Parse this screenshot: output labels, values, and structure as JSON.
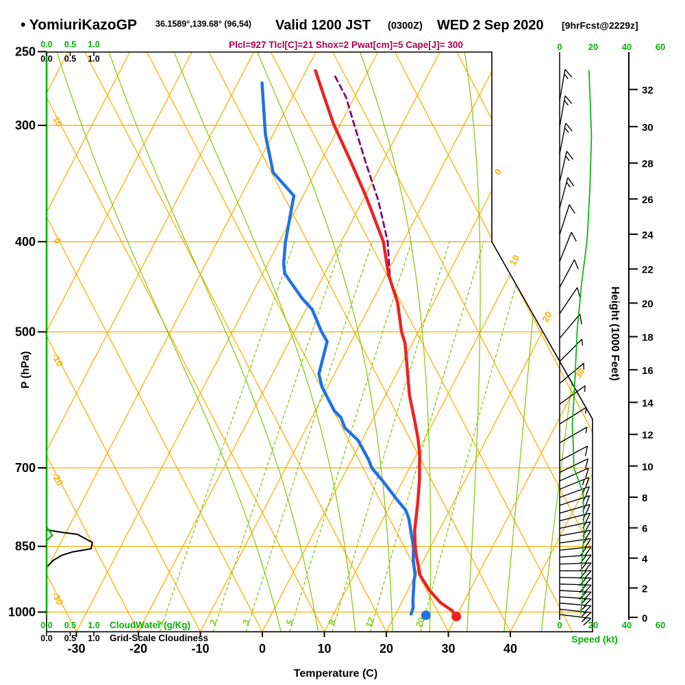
{
  "title": {
    "station": "• YomiuriKazoGP",
    "coords": "36.1589°,139.68° (96,54)",
    "valid": "Valid 1200 JST",
    "zulu": "(0300Z)",
    "date": "WED 2 Sep 2020",
    "fcst": "[9hrFcst@2229z]"
  },
  "params_line": "Plcl=927 Tlcl[C]=21 Shox=2 Pwat[cm]=5 Cape[J]= 300",
  "labels": {
    "pressure_axis": "P (hPa)",
    "temp_axis": "Temperature (C)",
    "height_axis": "Height (1000 Feet)",
    "speed_axis": "Speed (kt)",
    "cloud_water": "CloudWater (g/Kg)",
    "cloudiness": "Grid-Scale Cloudiness"
  },
  "colors": {
    "orange": "#FFAE00",
    "grid_green": "#84CC10",
    "ui_green": "#00B400",
    "red": "#EE2222",
    "blue": "#1E72E6",
    "purple": "#800080",
    "maroon": "#AA0055",
    "black": "#000000"
  },
  "chart_data": {
    "type": "line",
    "projection": "skew-t-log-p",
    "title": "YomiuriKazoGP sounding valid 1200 JST (0300Z) WED 2 Sep 2020",
    "xlabel": "Temperature (C)",
    "ylabel": "P (hPa)",
    "pressure_range_hPa": [
      1050,
      250
    ],
    "pressure_ticks_hPa": [
      250,
      300,
      400,
      500,
      700,
      850,
      1000
    ],
    "isobar_lines_hPa": [
      300,
      400,
      500,
      700,
      850,
      1000
    ],
    "temp_ticks_C": [
      -30,
      -20,
      -10,
      0,
      10,
      20,
      30,
      40
    ],
    "isotherm_lines_C": {
      "start": -100,
      "end": 40,
      "step": 10
    },
    "isotherm_edge_labels_C": [
      0,
      10,
      20,
      30
    ],
    "dry_adiabat_lines_C": {
      "start": -30,
      "end": 90,
      "step": 10
    },
    "dry_adiabat_edge_labels_C": [
      10,
      0,
      -10,
      -20,
      -30
    ],
    "moist_adiabat_starts_C_at_1050hPa": [
      3,
      9,
      15,
      21,
      27,
      33,
      39,
      45
    ],
    "mixing_ratio_lines_gkg": [
      1,
      2,
      3,
      5,
      8,
      12,
      20
    ],
    "height_ticks_kft": [
      0,
      2,
      4,
      6,
      8,
      10,
      12,
      14,
      16,
      18,
      20,
      22,
      24,
      26,
      28,
      30,
      32
    ],
    "speed_ticks_kt": [
      0,
      20,
      40,
      60
    ],
    "cloud_scale_ticks": [
      "0.0",
      "0.5",
      "1.0"
    ],
    "series": {
      "temperature_C": [
        [
          1011,
          29.9
        ],
        [
          997,
          28.9
        ],
        [
          977,
          26.3
        ],
        [
          949,
          23.6
        ],
        [
          913,
          20.7
        ],
        [
          863,
          18.1
        ],
        [
          850,
          17.5
        ],
        [
          818,
          16.1
        ],
        [
          762,
          14.2
        ],
        [
          721,
          12.6
        ],
        [
          700,
          11.6
        ],
        [
          677,
          10.5
        ],
        [
          651,
          8.9
        ],
        [
          622,
          6.8
        ],
        [
          585,
          3.9
        ],
        [
          514,
          -1.2
        ],
        [
          500,
          -2.7
        ],
        [
          465,
          -5.8
        ],
        [
          434,
          -9.6
        ],
        [
          400,
          -13.2
        ],
        [
          357,
          -19.9
        ],
        [
          328,
          -25.2
        ],
        [
          299,
          -31.1
        ],
        [
          279,
          -35.0
        ],
        [
          262,
          -38.5
        ]
      ],
      "dewpoint_C": [
        [
          1005,
          22.5
        ],
        [
          989,
          22.3
        ],
        [
          973,
          21.7
        ],
        [
          923,
          20.1
        ],
        [
          913,
          19.9
        ],
        [
          881,
          18.4
        ],
        [
          850,
          17.2
        ],
        [
          793,
          14.1
        ],
        [
          777,
          12.9
        ],
        [
          756,
          10.5
        ],
        [
          725,
          7.0
        ],
        [
          700,
          3.9
        ],
        [
          687,
          2.8
        ],
        [
          654,
          -0.6
        ],
        [
          634,
          -3.8
        ],
        [
          618,
          -5.3
        ],
        [
          608,
          -6.9
        ],
        [
          587,
          -9.3
        ],
        [
          573,
          -10.9
        ],
        [
          555,
          -12.5
        ],
        [
          512,
          -13.9
        ],
        [
          500,
          -15.6
        ],
        [
          473,
          -19.0
        ],
        [
          460,
          -21.6
        ],
        [
          433,
          -26.4
        ],
        [
          423,
          -27.4
        ],
        [
          400,
          -29.0
        ],
        [
          357,
          -31.5
        ],
        [
          337,
          -36.8
        ],
        [
          307,
          -41.2
        ],
        [
          270,
          -46.1
        ]
      ],
      "parcel_C": [
        [
          434,
          -9.4
        ],
        [
          400,
          -12.5
        ],
        [
          361,
          -17.5
        ],
        [
          330,
          -22.5
        ],
        [
          299,
          -27.8
        ],
        [
          280,
          -31.3
        ],
        [
          264,
          -35.3
        ]
      ],
      "surface_temperature_point": [
        1011,
        30
      ],
      "surface_dewpoint_point": [
        1008,
        25
      ],
      "wind_speed_kt": [
        [
          262,
          17.5
        ],
        [
          308,
          19
        ],
        [
          351,
          18
        ],
        [
          396,
          16.5
        ],
        [
          445,
          13
        ],
        [
          497,
          10.5
        ],
        [
          569,
          9
        ],
        [
          630,
          7.5
        ],
        [
          652,
          8
        ],
        [
          700,
          8.5
        ],
        [
          745,
          14
        ],
        [
          823,
          14.5
        ],
        [
          895,
          13
        ],
        [
          950,
          14
        ],
        [
          1003,
          12.5
        ]
      ],
      "cloudiness_fraction": [
        [
          816,
          0
        ],
        [
          821,
          0.32
        ],
        [
          825,
          0.65
        ],
        [
          842,
          0.97
        ],
        [
          855,
          0.94
        ],
        [
          862,
          0.54
        ],
        [
          869,
          0.32
        ],
        [
          880,
          0.14
        ],
        [
          892,
          0.03
        ]
      ],
      "cloud_water_gkg": [
        [
          810,
          0
        ],
        [
          827,
          0.12
        ],
        [
          838,
          0
        ]
      ],
      "wind_barbs": [
        [
          282,
          15,
          10
        ],
        [
          301,
          15,
          10
        ],
        [
          322,
          15,
          11
        ],
        [
          345,
          15,
          13
        ],
        [
          368,
          15,
          15
        ],
        [
          393,
          10,
          18
        ],
        [
          420,
          10,
          22
        ],
        [
          448,
          10,
          28
        ],
        [
          478,
          10,
          34
        ],
        [
          508,
          10,
          40
        ],
        [
          538,
          5,
          45
        ],
        [
          568,
          5,
          50
        ],
        [
          598,
          5,
          54
        ],
        [
          628,
          5,
          58
        ],
        [
          658,
          5,
          60
        ],
        [
          688,
          10,
          62
        ],
        [
          708,
          10,
          64
        ],
        [
          723,
          10,
          66
        ],
        [
          738,
          15,
          68
        ],
        [
          753,
          15,
          70
        ],
        [
          768,
          15,
          72
        ],
        [
          783,
          15,
          74
        ],
        [
          798,
          15,
          76
        ],
        [
          813,
          15,
          78
        ],
        [
          828,
          15,
          80
        ],
        [
          843,
          15,
          82
        ],
        [
          858,
          20,
          84
        ],
        [
          873,
          20,
          86
        ],
        [
          888,
          20,
          88
        ],
        [
          903,
          20,
          90
        ],
        [
          918,
          20,
          91
        ],
        [
          933,
          20,
          92
        ],
        [
          948,
          20,
          93
        ],
        [
          963,
          15,
          94
        ],
        [
          978,
          15,
          95
        ],
        [
          993,
          15,
          96
        ],
        [
          1006,
          15,
          97
        ]
      ]
    }
  }
}
